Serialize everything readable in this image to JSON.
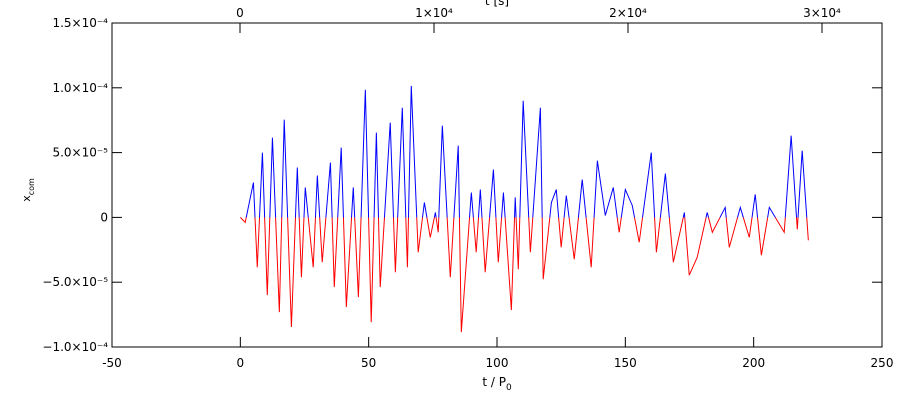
{
  "chart_data": {
    "type": "line",
    "x_label": "t / P",
    "x_label_sub": "0",
    "y_label": "x",
    "y_label_sub": "com",
    "x2_label": "t [s]",
    "xlim": [
      -50,
      250
    ],
    "xticks": [
      -50,
      0,
      50,
      100,
      150,
      200,
      250
    ],
    "x2lim": [
      -6598,
      33093
    ],
    "x2ticks": [
      0,
      {
        "value": 10000,
        "label": "1×10⁴"
      },
      {
        "value": 20000,
        "label": "2×10⁴"
      },
      {
        "value": 30000,
        "label": "3×10⁴"
      }
    ],
    "ylim": [
      -0.0001,
      0.00015
    ],
    "yticks": [
      {
        "value": -0.0001,
        "label": "−1.0×10⁻⁴"
      },
      {
        "value": -5e-05,
        "label": "−5.0×10⁻⁵"
      },
      0,
      {
        "value": 5e-05,
        "label": "5.0×10⁻⁵"
      },
      {
        "value": 0.0001,
        "label": "1.0×10⁻⁴"
      },
      {
        "value": 0.00015,
        "label": "1.5×10⁻⁴"
      }
    ],
    "color_positive": "#0000ff",
    "color_negative": "#ff0000",
    "x": [
      0,
      1.9,
      5.1,
      6.6,
      8.6,
      10.5,
      12.5,
      15.2,
      17.1,
      19.9,
      22.2,
      23.8,
      25.3,
      28.4,
      30.0,
      31.9,
      35.1,
      36.6,
      39.3,
      41.3,
      44.0,
      46.0,
      48.7,
      51.0,
      53.0,
      54.5,
      58.4,
      60.4,
      63.1,
      65.1,
      66.6,
      69.3,
      71.7,
      74.0,
      76.0,
      77.1,
      78.7,
      81.8,
      84.9,
      86.1,
      90.0,
      91.9,
      93.5,
      95.4,
      98.6,
      100.5,
      102.5,
      105.6,
      107.1,
      108.3,
      110.2,
      113.0,
      116.9,
      118.0,
      121.2,
      123.1,
      125.0,
      127.0,
      130.1,
      133.2,
      136.7,
      139.1,
      142.2,
      145.3,
      147.6,
      150.0,
      152.7,
      155.4,
      160.1,
      162.1,
      165.6,
      168.7,
      173.0,
      174.9,
      178.0,
      181.9,
      183.9,
      188.9,
      190.5,
      194.8,
      198.3,
      200.6,
      203.0,
      206.1,
      211.9,
      214.6,
      217.0,
      218.9,
      221.3
    ],
    "values": [
      0,
      -3.8e-06,
      2.69e-05,
      -3.85e-05,
      5e-05,
      -6e-05,
      6.15e-05,
      -7.31e-05,
      7.54e-05,
      -8.46e-05,
      3.85e-05,
      -4.62e-05,
      2.31e-05,
      -3.85e-05,
      3.23e-05,
      -3.46e-05,
      4.23e-05,
      -5.38e-05,
      5.38e-05,
      -6.92e-05,
      2.31e-05,
      -6.15e-05,
      9.85e-05,
      -8.08e-05,
      6.54e-05,
      -5.38e-05,
      7.31e-05,
      -4.23e-05,
      8.46e-05,
      -3.85e-05,
      0.0001015,
      -2.69e-05,
      1.15e-05,
      -1.54e-05,
      3.8e-06,
      -1.15e-05,
      7.08e-05,
      -4.62e-05,
      5.54e-05,
      -8.85e-05,
      1.92e-05,
      -2.69e-05,
      2.15e-05,
      -4.23e-05,
      3.69e-05,
      -3.46e-05,
      1.92e-05,
      -7.15e-05,
      1.54e-05,
      -4e-05,
      9e-05,
      -2.69e-05,
      8.46e-05,
      -4.77e-05,
      1.15e-05,
      2.15e-05,
      -2.31e-05,
      1.69e-05,
      -3.23e-05,
      2.92e-05,
      -3.85e-05,
      4.38e-05,
      1.5e-06,
      2.31e-05,
      -1.15e-05,
      2.15e-05,
      9.2e-06,
      -1.92e-05,
      5e-05,
      -2.69e-05,
      3.38e-05,
      -3.46e-05,
      3.8e-06,
      -4.46e-05,
      -3.08e-05,
      3.8e-06,
      -1.15e-05,
      7.7e-06,
      -2.31e-05,
      7.7e-06,
      -1.54e-05,
      1.77e-05,
      -2.92e-05,
      7.7e-06,
      -1.15e-05,
      6.31e-05,
      -9.2e-06,
      5.15e-05,
      -1.77e-05
    ]
  }
}
